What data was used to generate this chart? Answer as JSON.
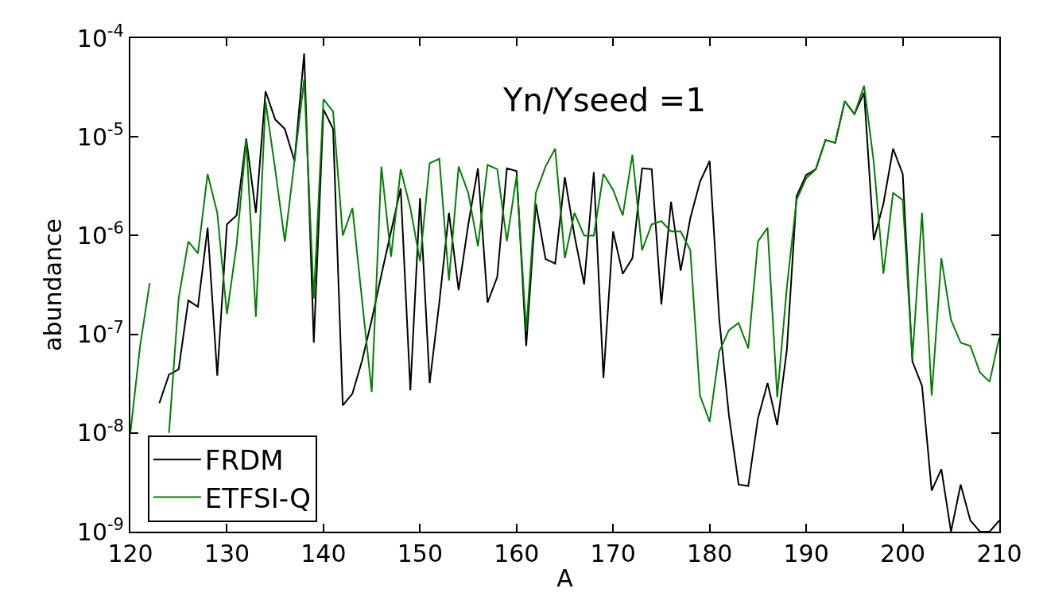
{
  "chart_data": {
    "type": "line",
    "xlabel": "A",
    "ylabel": "abundance",
    "annotations": [
      "Yn/Yseed =1"
    ],
    "log": "y",
    "grid": false,
    "legend": "bottom left",
    "marker": "none",
    "line_style": "solid",
    "x": [
      120,
      121,
      122,
      123,
      124,
      125,
      126,
      127,
      128,
      129,
      130,
      131,
      132,
      133,
      134,
      135,
      136,
      137,
      138,
      139,
      140,
      141,
      142,
      143,
      144,
      145,
      146,
      147,
      148,
      149,
      150,
      151,
      152,
      153,
      154,
      155,
      156,
      157,
      158,
      159,
      160,
      161,
      162,
      163,
      164,
      165,
      166,
      167,
      168,
      169,
      170,
      171,
      172,
      173,
      174,
      175,
      176,
      177,
      178,
      179,
      180,
      181,
      182,
      183,
      184,
      185,
      186,
      187,
      188,
      189,
      190,
      191,
      192,
      193,
      194,
      195,
      196,
      197,
      198,
      199,
      200,
      201,
      202,
      203,
      204,
      205,
      206,
      207,
      208,
      209,
      210
    ],
    "xlim": [
      120,
      210
    ],
    "xticks": [
      120,
      130,
      140,
      150,
      160,
      170,
      180,
      190,
      200,
      210
    ],
    "ylim": [
      1e-09,
      0.0001
    ],
    "yticks": [
      {
        "value": 1e-09,
        "label": "10$^{-9}$"
      },
      {
        "value": 1e-08,
        "label": "10$^{-8}$"
      },
      {
        "value": 1e-07,
        "label": "10$^{-7}$"
      },
      {
        "value": 1e-06,
        "label": "10$^{-6}$"
      },
      {
        "value": 1e-05,
        "label": "10$^{-5}$"
      },
      {
        "value": 0.0001,
        "label": "10$^{-4}$"
      }
    ],
    "series": [
      {
        "name": "FRDM",
        "color": "#000000",
        "values": [
          null,
          null,
          null,
          2e-08,
          3.9e-08,
          4.4e-08,
          2.2e-07,
          1.9e-07,
          1.2e-06,
          3.8e-08,
          1.3e-06,
          1.6e-06,
          9.6e-06,
          1.7e-06,
          2.9e-05,
          1.5e-05,
          1.2e-05,
          5.7e-06,
          7e-05,
          8.2e-08,
          1.9e-05,
          1.2e-05,
          1.9e-08,
          2.5e-08,
          5.4e-08,
          1.4e-07,
          4e-07,
          1.1e-06,
          3e-06,
          2.7e-08,
          2.4e-06,
          3.2e-08,
          2.1e-07,
          1.7e-06,
          2.8e-07,
          1.3e-06,
          4.8e-06,
          2.1e-07,
          3.8e-07,
          4.8e-06,
          4.5e-06,
          7.6e-08,
          2.1e-06,
          5.8e-07,
          5.2e-07,
          3.9e-06,
          1e-06,
          3.2e-07,
          4.4e-06,
          3.6e-08,
          1.1e-06,
          4.1e-07,
          5.9e-07,
          4.8e-06,
          4.7e-06,
          2e-07,
          2.2e-06,
          4.4e-07,
          1.5e-06,
          3.5e-06,
          5.7e-06,
          1.4e-07,
          1.5e-08,
          3e-09,
          2.9e-09,
          1.4e-08,
          3.2e-08,
          1.2e-08,
          7e-08,
          2.5e-06,
          4.1e-06,
          4.7e-06,
          9.3e-06,
          8.7e-06,
          2.3e-05,
          1.7e-05,
          2.8e-05,
          9e-07,
          2.1e-06,
          7.6e-06,
          4.2e-06,
          5.3e-08,
          3e-08,
          2.6e-09,
          4.3e-09,
          1e-09,
          3e-09,
          1.3e-09,
          1e-09,
          1e-09,
          1.3e-09
        ]
      },
      {
        "name": "ETFSI-Q",
        "color": "#008000",
        "values": [
          1e-08,
          7.5e-08,
          3.3e-07,
          null,
          1e-08,
          2.3e-07,
          8.7e-07,
          6.6e-07,
          4.2e-06,
          1.7e-06,
          1.6e-07,
          8e-07,
          9.3e-06,
          1.5e-07,
          2.3e-05,
          4.7e-06,
          8.7e-07,
          5.7e-06,
          3.8e-05,
          2.3e-07,
          2.4e-05,
          1.8e-05,
          1e-06,
          1.9e-06,
          2.2e-07,
          2.6e-08,
          5e-06,
          6.1e-07,
          4.7e-06,
          1.9e-06,
          5.5e-07,
          5.4e-06,
          6e-06,
          3.5e-07,
          5e-06,
          2.7e-06,
          7.8e-07,
          5.2e-06,
          4.7e-06,
          8.8e-07,
          4e-06,
          1.1e-07,
          2.7e-06,
          5e-06,
          7.6e-06,
          5.9e-07,
          1.7e-06,
          1e-06,
          1e-06,
          4.2e-06,
          2.9e-06,
          1.6e-06,
          6.6e-06,
          7.1e-07,
          1.3e-06,
          1.4e-06,
          1.1e-06,
          1.1e-06,
          7.1e-07,
          2.4e-08,
          1.3e-08,
          6.7e-08,
          1.1e-07,
          1.3e-07,
          7.2e-08,
          8.7e-07,
          1.2e-06,
          2.3e-08,
          3e-07,
          2.3e-06,
          3.8e-06,
          4.7e-06,
          9.3e-06,
          8.7e-06,
          2.3e-05,
          1.7e-05,
          3.3e-05,
          5.5e-06,
          4.1e-07,
          2.7e-06,
          2.3e-06,
          5.7e-08,
          1.7e-06,
          2.4e-08,
          5.9e-07,
          1.4e-07,
          8.2e-08,
          7.6e-08,
          4.1e-08,
          3.3e-08,
          9.3e-08
        ]
      }
    ]
  }
}
